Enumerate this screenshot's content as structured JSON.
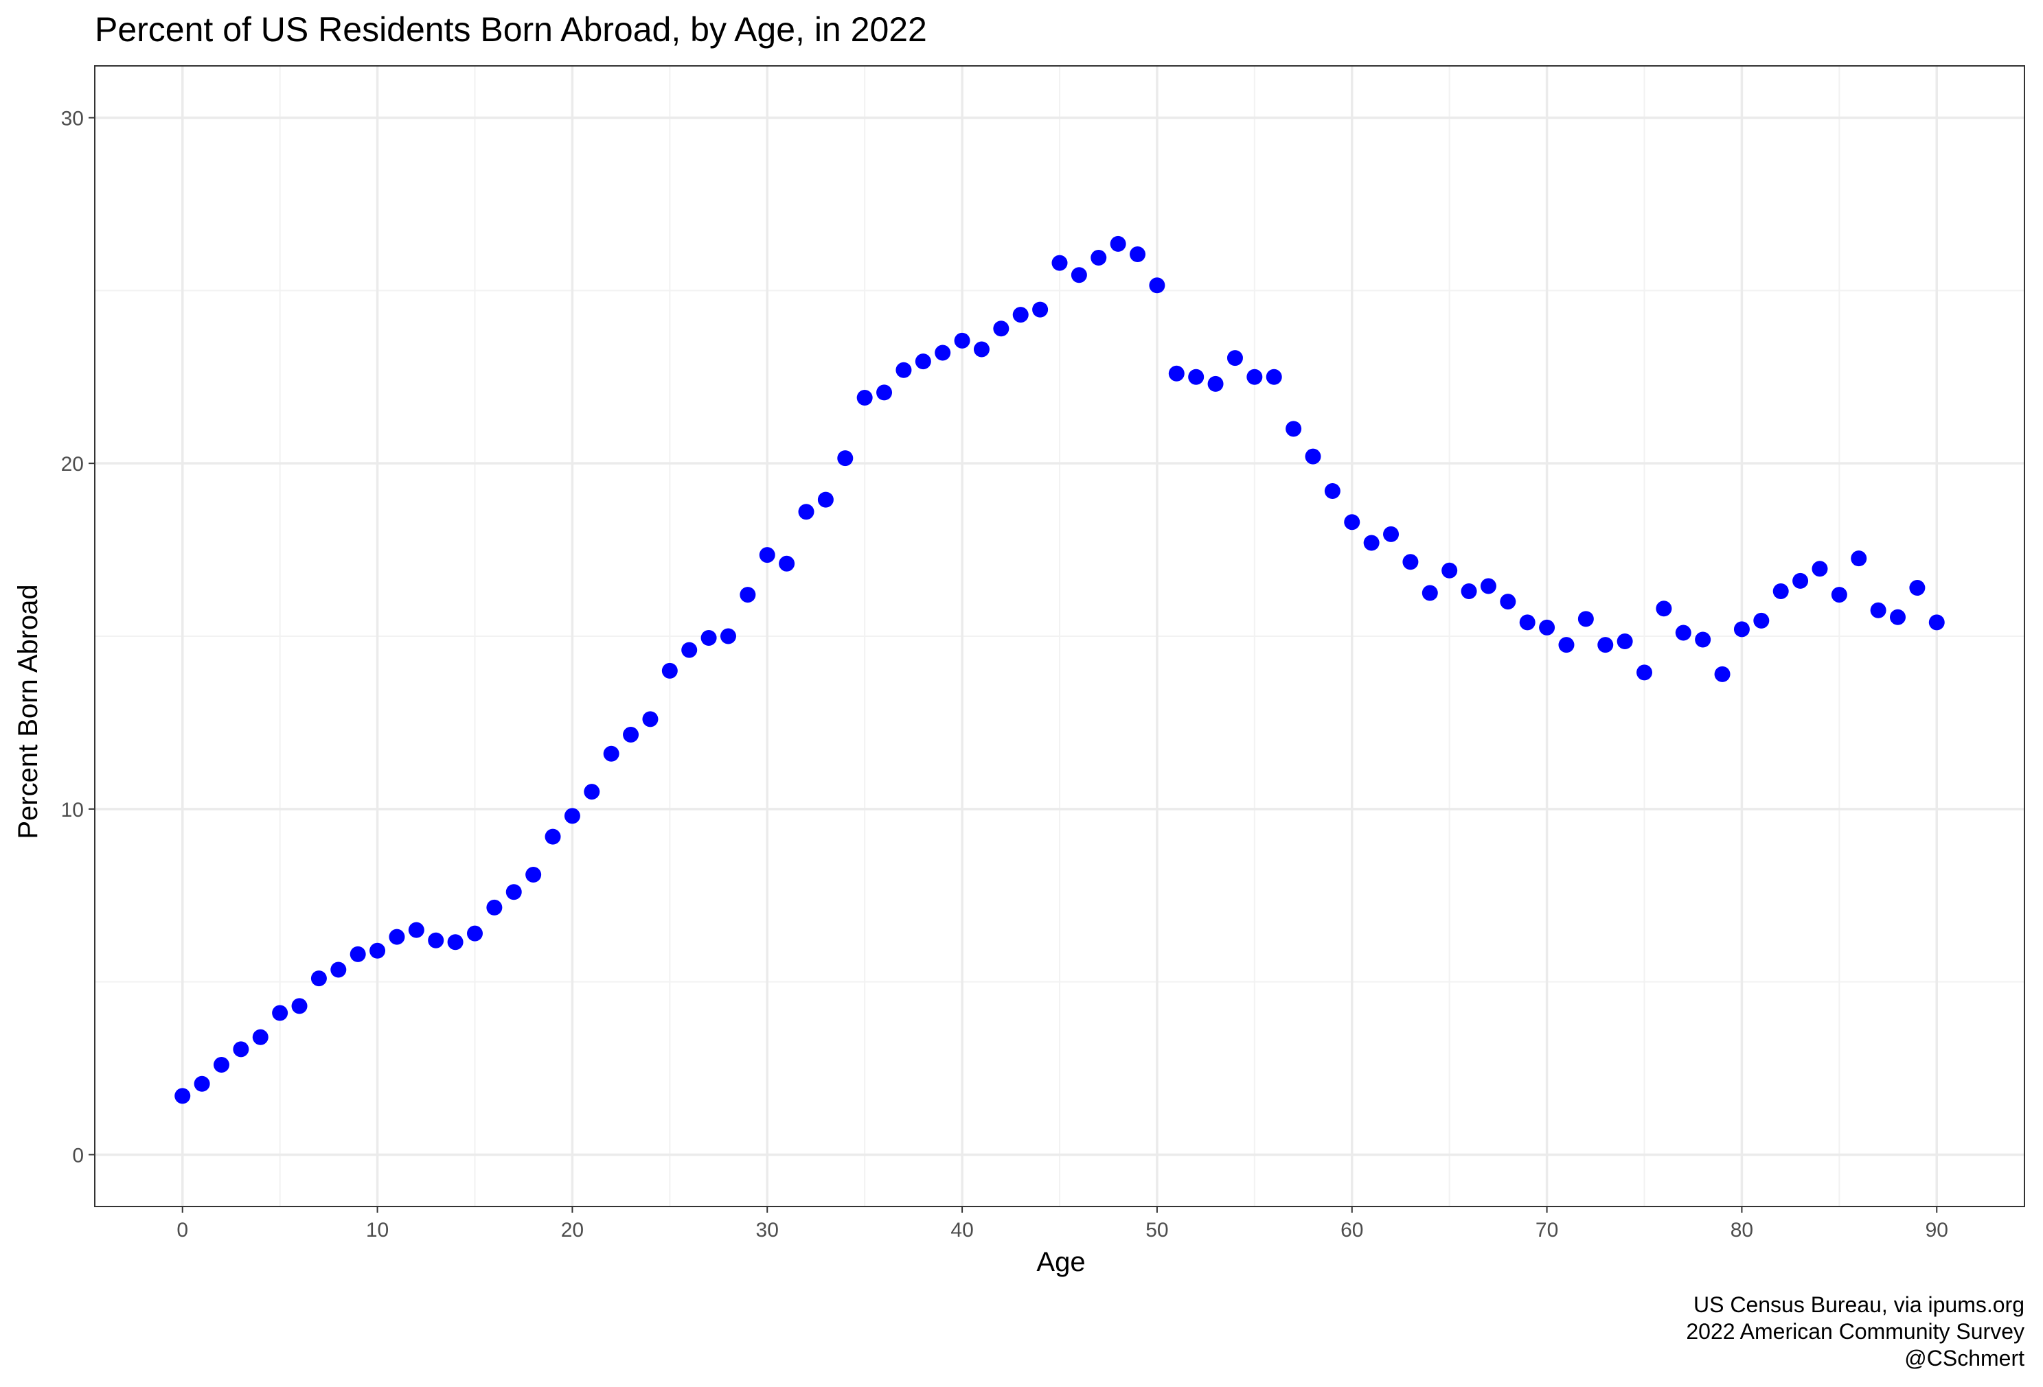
{
  "chart_data": {
    "type": "scatter",
    "title": "Percent of US Residents Born Abroad, by Age, in 2022",
    "xlabel": "Age",
    "ylabel": "Percent Born Abroad",
    "xlim": [
      -4.5,
      94.5
    ],
    "ylim": [
      -1.5,
      31.5
    ],
    "xticks": [
      0,
      10,
      20,
      30,
      40,
      50,
      60,
      70,
      80,
      90
    ],
    "yticks": [
      0,
      10,
      20,
      30
    ],
    "grid": true,
    "legend": "none",
    "point_color": "#0000ff",
    "caption": [
      "US Census Bureau, via ipums.org",
      "2022 American Community Survey",
      "@CSchmert"
    ],
    "x": [
      0,
      1,
      2,
      3,
      4,
      5,
      6,
      7,
      8,
      9,
      10,
      11,
      12,
      13,
      14,
      15,
      16,
      17,
      18,
      19,
      20,
      21,
      22,
      23,
      24,
      25,
      26,
      27,
      28,
      29,
      30,
      31,
      32,
      33,
      34,
      35,
      36,
      37,
      38,
      39,
      40,
      41,
      42,
      43,
      44,
      45,
      46,
      47,
      48,
      49,
      50,
      51,
      52,
      53,
      54,
      55,
      56,
      57,
      58,
      59,
      60,
      61,
      62,
      63,
      64,
      65,
      66,
      67,
      68,
      69,
      70,
      71,
      72,
      73,
      74,
      75,
      76,
      77,
      78,
      79,
      80,
      81,
      82,
      83,
      84,
      85,
      86,
      87,
      88,
      89,
      90
    ],
    "y": [
      1.7,
      2.05,
      2.6,
      3.05,
      3.4,
      4.1,
      4.3,
      5.1,
      5.35,
      5.8,
      5.9,
      6.3,
      6.5,
      6.2,
      6.15,
      6.4,
      7.15,
      7.6,
      8.1,
      9.2,
      9.8,
      10.5,
      11.6,
      12.15,
      12.6,
      14,
      14.6,
      14.95,
      15,
      16.2,
      17.35,
      17.1,
      18.6,
      18.95,
      20.15,
      21.9,
      22.05,
      22.7,
      22.95,
      23.2,
      23.55,
      23.3,
      23.9,
      24.3,
      24.45,
      25.8,
      25.45,
      25.95,
      26.35,
      26.05,
      25.15,
      22.6,
      22.5,
      22.3,
      23.05,
      22.5,
      22.5,
      21,
      20.2,
      19.2,
      18.3,
      17.7,
      17.95,
      17.15,
      16.25,
      16.9,
      16.3,
      16.45,
      16,
      15.4,
      15.25,
      14.75,
      15.5,
      14.75,
      14.85,
      13.95,
      15.8,
      15.1,
      14.9,
      13.9,
      15.2,
      15.45,
      16.3,
      16.6,
      16.95,
      16.2,
      17.25,
      15.75,
      15.55,
      16.4,
      15.4
    ]
  }
}
